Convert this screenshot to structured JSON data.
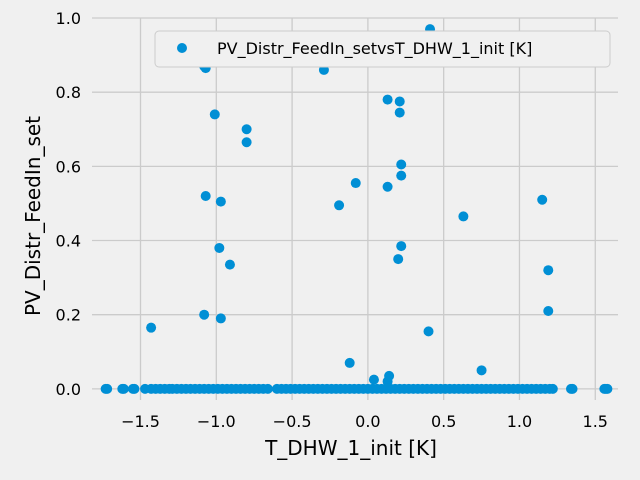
{
  "chart_data": {
    "type": "scatter",
    "xlabel": "T_DHW_1_init [K]",
    "ylabel": "PV_Distr_FeedIn_set",
    "xlim": [
      -1.82,
      1.65
    ],
    "ylim": [
      -0.03,
      1.0
    ],
    "xticks": [
      -1.5,
      -1.0,
      -0.5,
      0.0,
      0.5,
      1.0,
      1.5
    ],
    "xtick_labels": [
      "−1.5",
      "−1.0",
      "−0.5",
      "0.0",
      "0.5",
      "1.0",
      "1.5"
    ],
    "yticks": [
      0.0,
      0.2,
      0.4,
      0.6,
      0.8,
      1.0
    ],
    "ytick_labels": [
      "0.0",
      "0.2",
      "0.4",
      "0.6",
      "0.8",
      "1.0"
    ],
    "grid": true,
    "legend_position": "top-right",
    "color": "#008fd5",
    "series": [
      {
        "name": "PV_Distr_FeedIn_setvsT_DHW_1_init [K]",
        "points": [
          [
            -1.73,
            0.0
          ],
          [
            -1.72,
            0.0
          ],
          [
            -1.62,
            0.0
          ],
          [
            -1.61,
            0.0
          ],
          [
            -1.55,
            0.0
          ],
          [
            -1.54,
            0.0
          ],
          [
            -1.47,
            0.0
          ],
          [
            -1.43,
            0.0
          ],
          [
            -1.4,
            0.0
          ],
          [
            -1.37,
            0.0
          ],
          [
            -1.34,
            0.0
          ],
          [
            -1.31,
            0.0
          ],
          [
            -1.29,
            0.0
          ],
          [
            -1.26,
            0.0
          ],
          [
            -1.23,
            0.0
          ],
          [
            -1.2,
            0.0
          ],
          [
            -1.17,
            0.0
          ],
          [
            -1.14,
            0.0
          ],
          [
            -1.11,
            0.0
          ],
          [
            -1.08,
            0.0
          ],
          [
            -1.05,
            0.0
          ],
          [
            -1.02,
            0.0
          ],
          [
            -0.99,
            0.0
          ],
          [
            -0.96,
            0.0
          ],
          [
            -0.93,
            0.0
          ],
          [
            -0.9,
            0.0
          ],
          [
            -0.87,
            0.0
          ],
          [
            -0.84,
            0.0
          ],
          [
            -0.81,
            0.0
          ],
          [
            -0.78,
            0.0
          ],
          [
            -0.75,
            0.0
          ],
          [
            -0.72,
            0.0
          ],
          [
            -0.69,
            0.0
          ],
          [
            -0.66,
            0.0
          ],
          [
            -0.6,
            0.0
          ],
          [
            -0.57,
            0.0
          ],
          [
            -0.54,
            0.0
          ],
          [
            -0.51,
            0.0
          ],
          [
            -0.48,
            0.0
          ],
          [
            -0.45,
            0.0
          ],
          [
            -0.42,
            0.0
          ],
          [
            -0.39,
            0.0
          ],
          [
            -0.36,
            0.0
          ],
          [
            -0.33,
            0.0
          ],
          [
            -0.3,
            0.0
          ],
          [
            -0.27,
            0.0
          ],
          [
            -0.24,
            0.0
          ],
          [
            -0.21,
            0.0
          ],
          [
            -0.18,
            0.0
          ],
          [
            -0.15,
            0.0
          ],
          [
            -0.12,
            0.0
          ],
          [
            -0.09,
            0.0
          ],
          [
            -0.06,
            0.0
          ],
          [
            -0.03,
            0.0
          ],
          [
            0.0,
            0.0
          ],
          [
            0.03,
            0.0
          ],
          [
            0.06,
            0.0
          ],
          [
            0.09,
            0.0
          ],
          [
            0.12,
            0.0
          ],
          [
            0.15,
            0.0
          ],
          [
            0.18,
            0.0
          ],
          [
            0.21,
            0.0
          ],
          [
            0.24,
            0.0
          ],
          [
            0.27,
            0.0
          ],
          [
            0.3,
            0.0
          ],
          [
            0.33,
            0.0
          ],
          [
            0.36,
            0.0
          ],
          [
            0.39,
            0.0
          ],
          [
            0.42,
            0.0
          ],
          [
            0.45,
            0.0
          ],
          [
            0.48,
            0.0
          ],
          [
            0.51,
            0.0
          ],
          [
            0.54,
            0.0
          ],
          [
            0.57,
            0.0
          ],
          [
            0.6,
            0.0
          ],
          [
            0.63,
            0.0
          ],
          [
            0.66,
            0.0
          ],
          [
            0.69,
            0.0
          ],
          [
            0.72,
            0.0
          ],
          [
            0.75,
            0.0
          ],
          [
            0.78,
            0.0
          ],
          [
            0.81,
            0.0
          ],
          [
            0.84,
            0.0
          ],
          [
            0.87,
            0.0
          ],
          [
            0.9,
            0.0
          ],
          [
            0.93,
            0.0
          ],
          [
            0.96,
            0.0
          ],
          [
            0.99,
            0.0
          ],
          [
            1.02,
            0.0
          ],
          [
            1.05,
            0.0
          ],
          [
            1.08,
            0.0
          ],
          [
            1.11,
            0.0
          ],
          [
            1.14,
            0.0
          ],
          [
            1.17,
            0.0
          ],
          [
            1.2,
            0.0
          ],
          [
            1.22,
            0.0
          ],
          [
            1.34,
            0.0
          ],
          [
            1.35,
            0.0
          ],
          [
            1.56,
            0.0
          ],
          [
            1.57,
            0.0
          ],
          [
            1.58,
            0.0
          ],
          [
            -1.08,
            0.87
          ],
          [
            -1.07,
            0.865
          ],
          [
            -0.29,
            0.86
          ],
          [
            0.41,
            0.97
          ],
          [
            0.13,
            0.78
          ],
          [
            0.21,
            0.775
          ],
          [
            0.21,
            0.745
          ],
          [
            -1.01,
            0.74
          ],
          [
            -0.8,
            0.7
          ],
          [
            -0.8,
            0.665
          ],
          [
            0.22,
            0.605
          ],
          [
            0.22,
            0.575
          ],
          [
            0.13,
            0.545
          ],
          [
            -0.08,
            0.555
          ],
          [
            -1.07,
            0.52
          ],
          [
            -0.97,
            0.505
          ],
          [
            -0.19,
            0.495
          ],
          [
            0.63,
            0.465
          ],
          [
            1.15,
            0.51
          ],
          [
            -0.98,
            0.38
          ],
          [
            0.22,
            0.385
          ],
          [
            0.2,
            0.35
          ],
          [
            -0.91,
            0.335
          ],
          [
            1.19,
            0.32
          ],
          [
            -1.43,
            0.165
          ],
          [
            0.4,
            0.155
          ],
          [
            -1.08,
            0.2
          ],
          [
            -0.97,
            0.19
          ],
          [
            1.19,
            0.21
          ],
          [
            -0.12,
            0.07
          ],
          [
            0.75,
            0.05
          ],
          [
            0.04,
            0.025
          ],
          [
            0.14,
            0.035
          ],
          [
            0.13,
            0.02
          ]
        ]
      }
    ]
  }
}
